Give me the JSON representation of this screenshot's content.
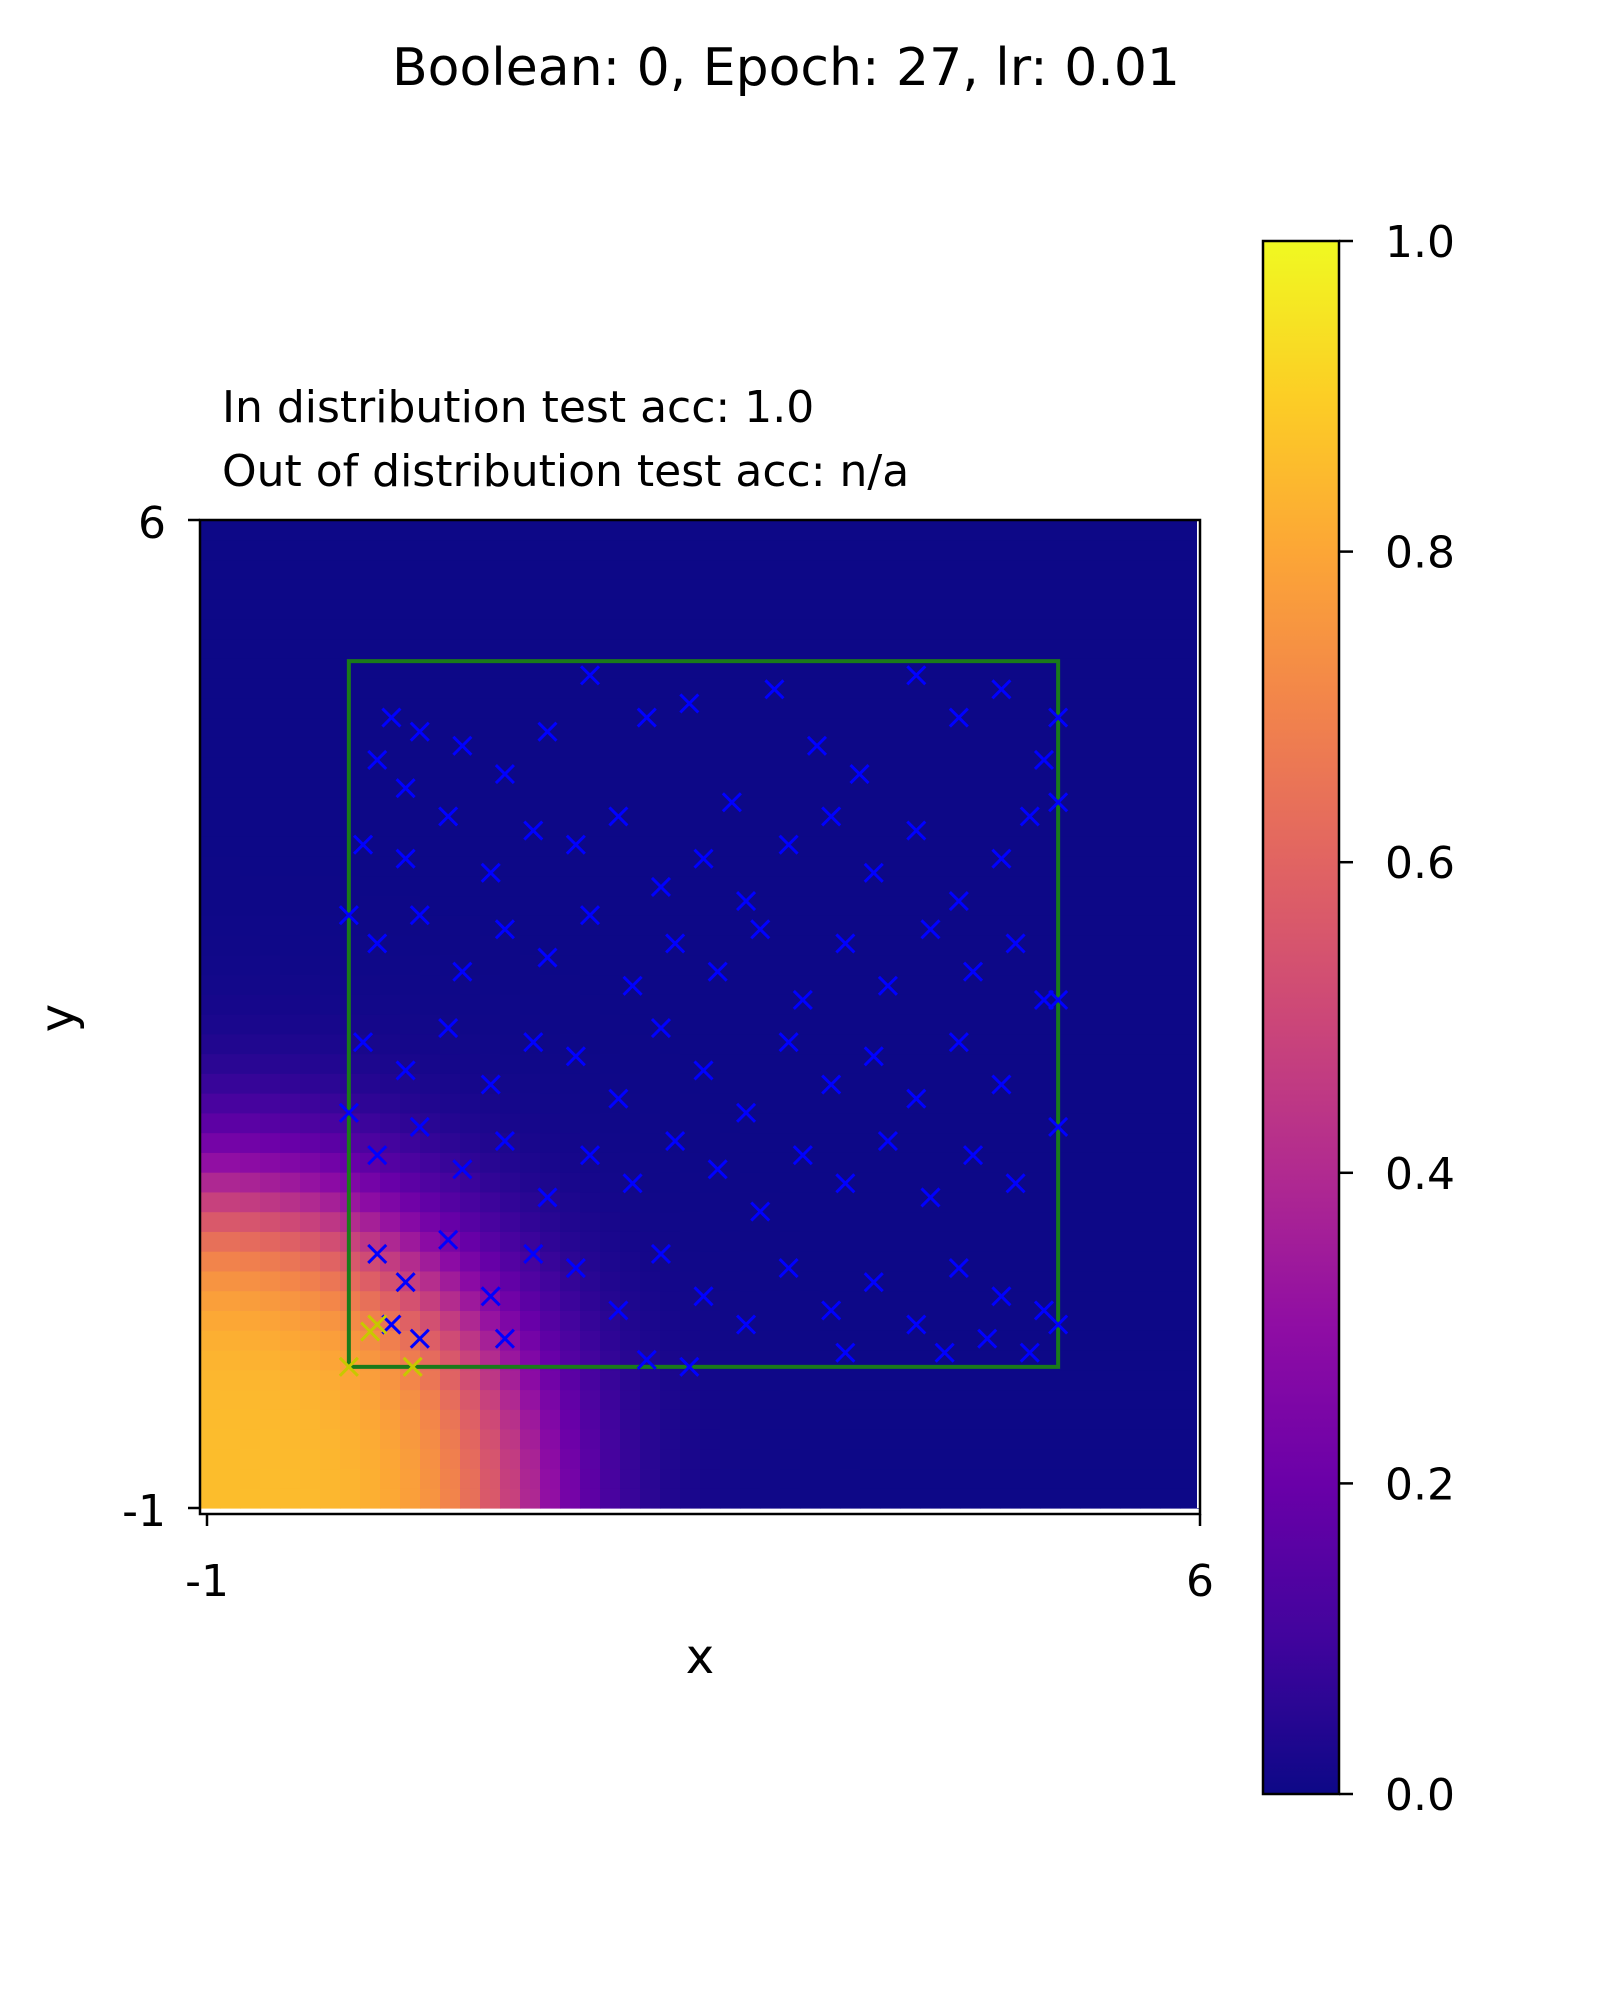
{
  "figure": {
    "suptitle": "Boolean: 0, Epoch: 27, lr: 0.01"
  },
  "chart_data": {
    "type": "heatmap",
    "title_lines": [
      "In distribution test acc: 1.0",
      "Out of distribution test acc: n/a"
    ],
    "xlabel": "x",
    "ylabel": "y",
    "xlim": [
      -1,
      6
    ],
    "ylim": [
      -1,
      6
    ],
    "xticks": [
      "-1",
      "6"
    ],
    "yticks": [
      "-1",
      "6"
    ],
    "colormap": "plasma",
    "colorbar": {
      "range": [
        0,
        1
      ],
      "ticks": [
        "0.0",
        "0.2",
        "0.4",
        "0.6",
        "0.8",
        "1.0"
      ]
    },
    "surface": {
      "description_of_values": "predicted probability; high near origin corner, decaying outward",
      "peak_location": [
        -1,
        -1
      ],
      "peak_value": 0.86
    },
    "region_box": {
      "x0": 0,
      "x1": 5,
      "y0": 0,
      "y1": 5,
      "color": "#1a7a1a"
    },
    "series": [
      {
        "color": "#0000ff",
        "marker": "x",
        "points": [
          [
            0.2,
            4.3
          ],
          [
            0.3,
            4.6
          ],
          [
            0.4,
            4.1
          ],
          [
            0.5,
            4.5
          ],
          [
            0.8,
            4.4
          ],
          [
            1.1,
            4.2
          ],
          [
            1.4,
            4.5
          ],
          [
            1.7,
            4.9
          ],
          [
            2.1,
            4.6
          ],
          [
            2.4,
            4.7
          ],
          [
            2.7,
            4.0
          ],
          [
            3.0,
            4.8
          ],
          [
            3.3,
            4.4
          ],
          [
            3.6,
            4.2
          ],
          [
            4.0,
            4.9
          ],
          [
            4.3,
            4.6
          ],
          [
            4.6,
            4.8
          ],
          [
            4.9,
            4.3
          ],
          [
            0.1,
            3.7
          ],
          [
            0.4,
            3.6
          ],
          [
            0.7,
            3.9
          ],
          [
            1.0,
            3.5
          ],
          [
            1.3,
            3.8
          ],
          [
            1.6,
            3.7
          ],
          [
            1.9,
            3.9
          ],
          [
            2.2,
            3.4
          ],
          [
            2.5,
            3.6
          ],
          [
            2.8,
            3.3
          ],
          [
            3.1,
            3.7
          ],
          [
            3.4,
            3.9
          ],
          [
            3.7,
            3.5
          ],
          [
            4.0,
            3.8
          ],
          [
            4.3,
            3.3
          ],
          [
            4.6,
            3.6
          ],
          [
            4.8,
            3.9
          ],
          [
            0.2,
            3.0
          ],
          [
            0.5,
            3.2
          ],
          [
            0.8,
            2.8
          ],
          [
            1.1,
            3.1
          ],
          [
            1.4,
            2.9
          ],
          [
            1.7,
            3.2
          ],
          [
            2.0,
            2.7
          ],
          [
            2.3,
            3.0
          ],
          [
            2.6,
            2.8
          ],
          [
            2.9,
            3.1
          ],
          [
            3.2,
            2.6
          ],
          [
            3.5,
            3.0
          ],
          [
            3.8,
            2.7
          ],
          [
            4.1,
            3.1
          ],
          [
            4.4,
            2.8
          ],
          [
            4.7,
            3.0
          ],
          [
            4.9,
            2.6
          ],
          [
            0.1,
            2.3
          ],
          [
            0.4,
            2.1
          ],
          [
            0.7,
            2.4
          ],
          [
            1.0,
            2.0
          ],
          [
            1.3,
            2.3
          ],
          [
            1.6,
            2.2
          ],
          [
            1.9,
            1.9
          ],
          [
            2.2,
            2.4
          ],
          [
            2.5,
            2.1
          ],
          [
            2.8,
            1.8
          ],
          [
            3.1,
            2.3
          ],
          [
            3.4,
            2.0
          ],
          [
            3.7,
            2.2
          ],
          [
            4.0,
            1.9
          ],
          [
            4.3,
            2.3
          ],
          [
            4.6,
            2.0
          ],
          [
            0.2,
            1.5
          ],
          [
            0.5,
            1.7
          ],
          [
            0.8,
            1.4
          ],
          [
            1.1,
            1.6
          ],
          [
            1.4,
            1.2
          ],
          [
            1.7,
            1.5
          ],
          [
            2.0,
            1.3
          ],
          [
            2.3,
            1.6
          ],
          [
            2.6,
            1.4
          ],
          [
            2.9,
            1.1
          ],
          [
            3.2,
            1.5
          ],
          [
            3.5,
            1.3
          ],
          [
            3.8,
            1.6
          ],
          [
            4.1,
            1.2
          ],
          [
            4.4,
            1.5
          ],
          [
            4.7,
            1.3
          ],
          [
            0.2,
            0.8
          ],
          [
            0.4,
            0.6
          ],
          [
            0.7,
            0.9
          ],
          [
            1.0,
            0.5
          ],
          [
            1.3,
            0.8
          ],
          [
            1.6,
            0.7
          ],
          [
            1.9,
            0.4
          ],
          [
            2.2,
            0.8
          ],
          [
            2.5,
            0.5
          ],
          [
            2.8,
            0.3
          ],
          [
            3.1,
            0.7
          ],
          [
            3.4,
            0.4
          ],
          [
            3.7,
            0.6
          ],
          [
            4.0,
            0.3
          ],
          [
            4.3,
            0.7
          ],
          [
            4.6,
            0.5
          ],
          [
            4.9,
            0.4
          ],
          [
            0.3,
            0.3
          ],
          [
            0.5,
            0.2
          ],
          [
            1.1,
            0.2
          ],
          [
            2.1,
            0.05
          ],
          [
            2.4,
            0.0
          ],
          [
            3.5,
            0.1
          ],
          [
            4.2,
            0.1
          ],
          [
            4.5,
            0.2
          ],
          [
            4.8,
            0.1
          ],
          [
            5.0,
            0.3
          ],
          [
            5.0,
            1.7
          ],
          [
            5.0,
            2.6
          ],
          [
            5.0,
            4.0
          ],
          [
            5.0,
            4.6
          ],
          [
            0.0,
            3.2
          ],
          [
            0.0,
            1.8
          ]
        ]
      },
      {
        "color": "#c8c800",
        "marker": "x",
        "points": [
          [
            0.0,
            0.0
          ],
          [
            0.15,
            0.25
          ],
          [
            0.2,
            0.3
          ],
          [
            0.45,
            0.0
          ]
        ]
      }
    ]
  }
}
